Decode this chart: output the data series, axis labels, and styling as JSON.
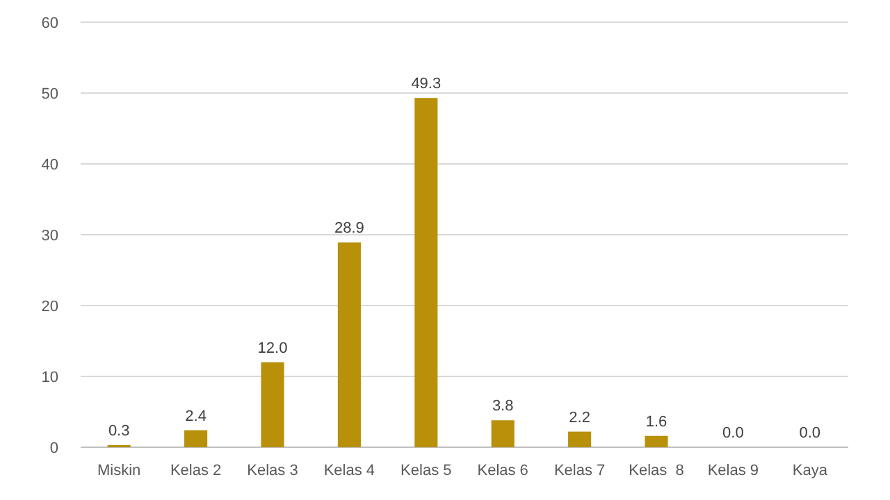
{
  "chart_data": {
    "type": "bar",
    "categories": [
      "Miskin",
      "Kelas 2",
      "Kelas 3",
      "Kelas 4",
      "Kelas 5",
      "Kelas 6",
      "Kelas 7",
      "Kelas  8",
      "Kelas 9",
      "Kaya"
    ],
    "values": [
      0.3,
      2.4,
      12.0,
      28.9,
      49.3,
      3.8,
      2.2,
      1.6,
      0.0,
      0.0
    ],
    "value_labels": [
      "0.3",
      "2.4",
      "12.0",
      "28.9",
      "49.3",
      "3.8",
      "2.2",
      "1.6",
      "0.0",
      "0.0"
    ],
    "color": "#b8900a",
    "ylim": [
      0,
      60
    ],
    "yticks": [
      0,
      10,
      20,
      30,
      40,
      50,
      60
    ],
    "grid": true
  }
}
